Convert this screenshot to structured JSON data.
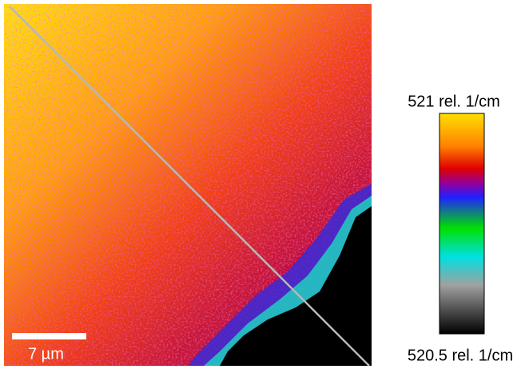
{
  "map": {
    "scale_bar_label": "7 µm"
  },
  "colorbar": {
    "max_label": "521 rel. 1/cm",
    "min_label": "520.5 rel. 1/cm"
  }
}
